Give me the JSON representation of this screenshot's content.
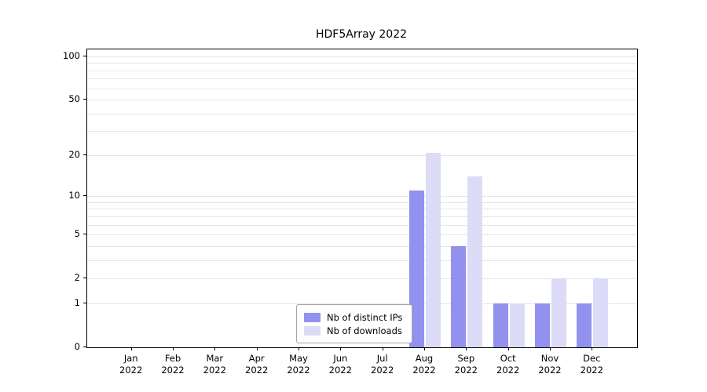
{
  "chart_data": {
    "type": "bar",
    "title": "HDF5Array 2022",
    "categories": [
      "Jan",
      "Feb",
      "Mar",
      "Apr",
      "May",
      "Jun",
      "Jul",
      "Aug",
      "Sep",
      "Oct",
      "Nov",
      "Dec"
    ],
    "year": "2022",
    "series": [
      {
        "name": "Nb of distinct IPs",
        "color": "#9292ee",
        "values": [
          0,
          0,
          0,
          0,
          0,
          0,
          0,
          11,
          4,
          1,
          1,
          1
        ]
      },
      {
        "name": "Nb of downloads",
        "color": "#dcdcf8",
        "values": [
          0,
          0,
          0,
          0,
          0,
          0,
          0,
          21,
          14,
          1,
          2,
          2
        ]
      }
    ],
    "yticks": [
      100,
      50,
      20,
      10,
      5,
      2,
      1,
      0
    ],
    "minor_gridlines": [
      1,
      2,
      3,
      4,
      5,
      6,
      7,
      8,
      9,
      10,
      20,
      30,
      40,
      50,
      60,
      70,
      80,
      90,
      100
    ],
    "yscale": "log1p",
    "ylim": [
      0,
      100
    ],
    "grid": true,
    "legend_position": "bottom-center"
  }
}
